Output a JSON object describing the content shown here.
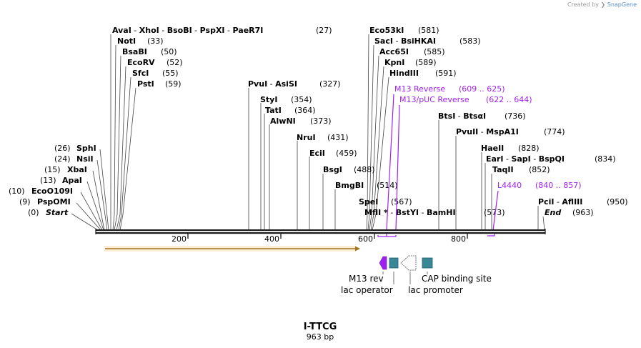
{
  "credit": {
    "prefix": "Created by",
    "brand": "SnapGene"
  },
  "sequence": {
    "name": "I-TTCG",
    "length_label": "963 bp",
    "length": 963
  },
  "ruler": {
    "ticks": [
      "200",
      "400",
      "600",
      "800"
    ]
  },
  "colors": {
    "backbone": "#1a1a1a",
    "primer": "#a020f0",
    "orf": "#e6a54a",
    "feature": "#3a8797",
    "text": "#000000",
    "light": "#6a6a6a"
  },
  "sites_top": [
    {
      "id": "avai-group",
      "enzymes": [
        "AvaI",
        "XhoI",
        "BsoBI",
        "PspXI",
        "PaeR7I"
      ],
      "pos": "(27)"
    },
    {
      "id": "noti",
      "enzymes": [
        "NotI"
      ],
      "pos": "(33)"
    },
    {
      "id": "bsabi",
      "enzymes": [
        "BsaBI"
      ],
      "pos": "(50)"
    },
    {
      "id": "ecorv",
      "enzymes": [
        "EcoRV"
      ],
      "pos": "(52)"
    },
    {
      "id": "sfci",
      "enzymes": [
        "SfcI"
      ],
      "pos": "(55)"
    },
    {
      "id": "psti",
      "enzymes": [
        "PstI"
      ],
      "pos": "(59)"
    },
    {
      "id": "pvui",
      "enzymes": [
        "PvuI",
        "AsiSI"
      ],
      "pos": "(327)"
    },
    {
      "id": "styi",
      "enzymes": [
        "StyI"
      ],
      "pos": "(354)"
    },
    {
      "id": "tati",
      "enzymes": [
        "TatI"
      ],
      "pos": "(364)"
    },
    {
      "id": "alwni",
      "enzymes": [
        "AlwNI"
      ],
      "pos": "(373)"
    },
    {
      "id": "prui",
      "enzymes": [
        "NruI"
      ],
      "pos": "(431)"
    },
    {
      "id": "ecii",
      "enzymes": [
        "EciI"
      ],
      "pos": "(459)"
    },
    {
      "id": "bsgi",
      "enzymes": [
        "BsgI"
      ],
      "pos": "(488)"
    },
    {
      "id": "bmgbi",
      "enzymes": [
        "BmgBI"
      ],
      "pos": "(514)"
    },
    {
      "id": "spei",
      "enzymes": [
        "SpeI"
      ],
      "pos": "(567)"
    },
    {
      "id": "mfli",
      "enzymes": [
        "MflI *",
        "BstYI",
        "BamHI"
      ],
      "pos": "(573)"
    },
    {
      "id": "eco53ki",
      "enzymes": [
        "Eco53kI"
      ],
      "pos": "(581)"
    },
    {
      "id": "saci",
      "enzymes": [
        "SacI",
        "BsiHKAI"
      ],
      "pos": "(583)"
    },
    {
      "id": "acc65i",
      "enzymes": [
        "Acc65I"
      ],
      "pos": "(585)"
    },
    {
      "id": "kpni",
      "enzymes": [
        "KpnI"
      ],
      "pos": "(589)"
    },
    {
      "id": "hindiii",
      "enzymes": [
        "HindIII"
      ],
      "pos": "(591)"
    },
    {
      "id": "btsi",
      "enzymes": [
        "BtsI",
        "BtsαI"
      ],
      "pos": "(736)"
    },
    {
      "id": "pvuii",
      "enzymes": [
        "PvuII",
        "MspA1I"
      ],
      "pos": "(774)"
    },
    {
      "id": "haeii",
      "enzymes": [
        "HaeII"
      ],
      "pos": "(828)"
    },
    {
      "id": "eari",
      "enzymes": [
        "EarI",
        "SapI",
        "BspQI"
      ],
      "pos": "(834)"
    },
    {
      "id": "taqii",
      "enzymes": [
        "TaqII"
      ],
      "pos": "(852)"
    },
    {
      "id": "pcii",
      "enzymes": [
        "PciI",
        "AflIII"
      ],
      "pos": "(950)"
    },
    {
      "id": "end",
      "enzymes": [
        "End"
      ],
      "pos": "(963)"
    }
  ],
  "sites_left": [
    {
      "id": "sphi",
      "enzyme": "SphI",
      "pos": "(26)"
    },
    {
      "id": "nsii",
      "enzyme": "NsiI",
      "pos": "(24)"
    },
    {
      "id": "xbai",
      "enzyme": "XbaI",
      "pos": "(15)"
    },
    {
      "id": "apai",
      "enzyme": "ApaI",
      "pos": "(13)"
    },
    {
      "id": "ecoo109i",
      "enzyme": "EcoO109I",
      "pos": "(10)"
    },
    {
      "id": "pspomi",
      "enzyme": "PspOMI",
      "pos": "(9)"
    },
    {
      "id": "start",
      "enzyme": "Start",
      "pos": "(0)"
    }
  ],
  "primers": [
    {
      "id": "m13-reverse",
      "name": "M13 Reverse",
      "range": "(609 .. 625)"
    },
    {
      "id": "m13-puc-reverse",
      "name": "M13/pUC Reverse",
      "range": "(622 .. 644)"
    },
    {
      "id": "l4440",
      "name": "L4440",
      "range": "(840 .. 857)"
    }
  ],
  "features": [
    {
      "id": "m13-rev",
      "label": "M13 rev"
    },
    {
      "id": "lac-operator",
      "label": "lac operator"
    },
    {
      "id": "lac-promoter",
      "label": "lac promoter"
    },
    {
      "id": "cap-binding-site",
      "label": "CAP binding site"
    }
  ]
}
